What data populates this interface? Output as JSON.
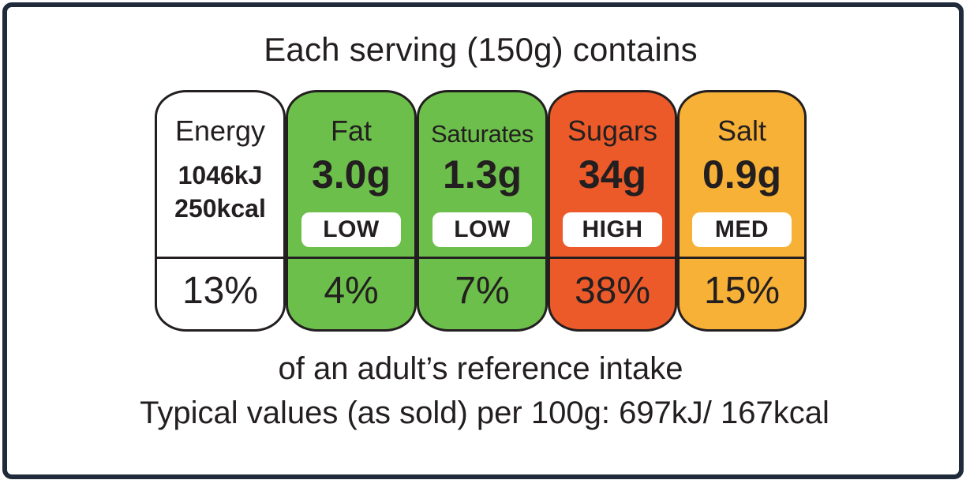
{
  "header": "Each serving (150g) contains",
  "panels": [
    {
      "name": "Energy",
      "kj": "1046kJ",
      "kcal": "250kcal",
      "percent": "13%",
      "color": "#ffffff"
    },
    {
      "name": "Fat",
      "amount": "3.0g",
      "level": "LOW",
      "percent": "4%",
      "color": "#6cbf4b"
    },
    {
      "name": "Saturates",
      "amount": "1.3g",
      "level": "LOW",
      "percent": "7%",
      "color": "#6cbf4b"
    },
    {
      "name": "Sugars",
      "amount": "34g",
      "level": "HIGH",
      "percent": "38%",
      "color": "#ec5a2a"
    },
    {
      "name": "Salt",
      "amount": "0.9g",
      "level": "MED",
      "percent": "15%",
      "color": "#f7b136"
    }
  ],
  "footer_line_1": "of an adult’s reference intake",
  "footer_line_2": "Typical values (as sold) per 100g: 697kJ/ 167kcal"
}
